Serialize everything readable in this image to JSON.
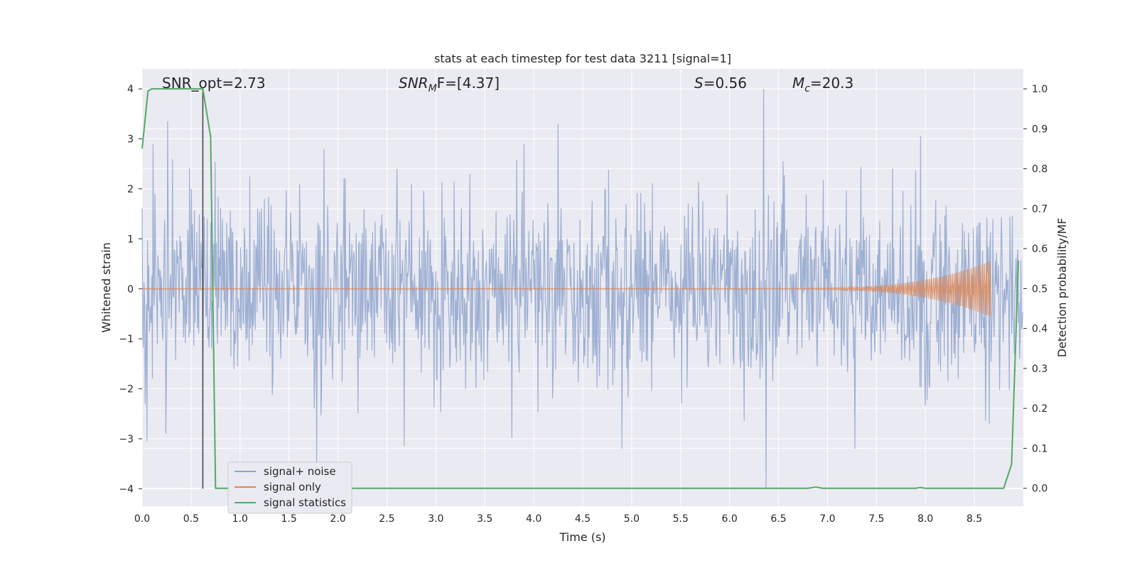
{
  "chart_data": {
    "type": "line",
    "title": "stats at each timestep for test data 3211 [signal=1]",
    "xlabel": "Time (s)",
    "ylabel": "Whitened strain",
    "y2label": "Detection probability/MF",
    "xlim": [
      0.0,
      9.0
    ],
    "ylim": [
      -4.35,
      4.4
    ],
    "y2lim": [
      -0.045,
      1.05
    ],
    "xticks": [
      "0.0",
      "0.5",
      "1.0",
      "1.5",
      "2.0",
      "2.5",
      "3.0",
      "3.5",
      "4.0",
      "4.5",
      "5.0",
      "5.5",
      "6.0",
      "6.5",
      "7.0",
      "7.5",
      "8.0",
      "8.5"
    ],
    "yticks": [
      "4",
      "3",
      "2",
      "1",
      "0",
      "−1",
      "−2",
      "−3",
      "−4"
    ],
    "y2ticks": [
      "1.0",
      "0.9",
      "0.8",
      "0.7",
      "0.6",
      "0.5",
      "0.4",
      "0.3",
      "0.2",
      "0.1",
      "0.0"
    ],
    "grid": true,
    "legend_position": "bottom-left",
    "annotations": {
      "snr_opt": "SNR_opt=2.73",
      "snr_mf_base": "SNR",
      "snr_mf_sub": "M",
      "snr_mf_rest": "F=[4.37]",
      "s_var": "S",
      "s_rest": "=0.56",
      "mc_var": "M",
      "mc_sub": "c",
      "mc_rest": "=20.3"
    },
    "marker_time": 0.62,
    "series": [
      {
        "name": "signal+ noise",
        "color": "#8fa4cc",
        "kind": "noise",
        "n_samples": 1450,
        "typical_amplitude": 1.5,
        "peaks": [
          [
            0.26,
            3.35
          ],
          [
            0.11,
            2.9
          ],
          [
            1.86,
            2.8
          ],
          [
            3.9,
            2.9
          ],
          [
            4.25,
            3.3
          ],
          [
            6.35,
            4.0
          ],
          [
            7.95,
            3.05
          ],
          [
            0.5,
            2.0
          ],
          [
            2.6,
            2.4
          ]
        ],
        "troughs": [
          [
            0.05,
            -3.05
          ],
          [
            1.78,
            -3.5
          ],
          [
            2.68,
            -3.15
          ],
          [
            4.9,
            -3.2
          ],
          [
            6.37,
            -4.0
          ],
          [
            7.28,
            -3.2
          ],
          [
            0.24,
            -2.9
          ],
          [
            8.65,
            -2.7
          ]
        ]
      },
      {
        "name": "signal only",
        "color": "#dd8452",
        "kind": "chirp",
        "chirp_start": 6.3,
        "chirp_end": 8.67,
        "chirp_peak_amplitude": 0.55
      },
      {
        "name": "signal statistics",
        "color": "#55a868",
        "kind": "line",
        "axis": "right",
        "x": [
          0.0,
          0.06,
          0.1,
          0.2,
          0.3,
          0.4,
          0.5,
          0.6,
          0.62,
          0.7,
          0.75,
          1.0,
          2.0,
          3.0,
          4.0,
          5.0,
          6.0,
          6.8,
          6.88,
          6.95,
          7.5,
          7.9,
          7.95,
          8.0,
          8.5,
          8.8,
          8.88,
          8.95
        ],
        "y": [
          0.85,
          0.995,
          1.0,
          1.0,
          1.0,
          1.0,
          1.0,
          1.0,
          1.0,
          0.88,
          0.0,
          0.0,
          0.0,
          0.0,
          0.0,
          0.0,
          0.0,
          0.0,
          0.003,
          0.0,
          0.0,
          0.0,
          0.002,
          0.0,
          0.0,
          0.0,
          0.06,
          0.57
        ]
      }
    ]
  }
}
